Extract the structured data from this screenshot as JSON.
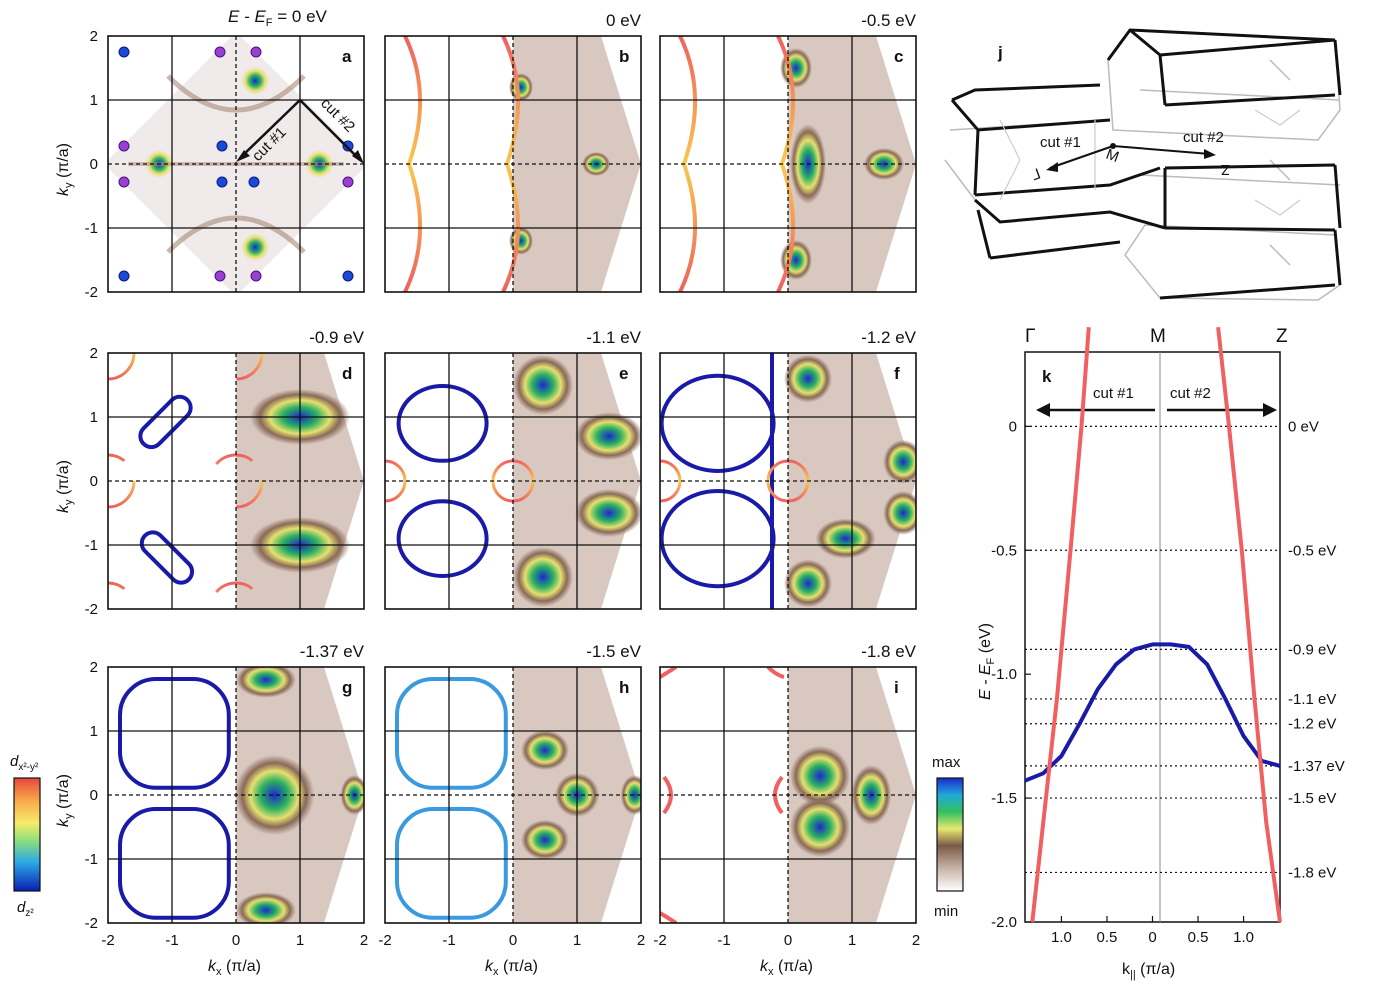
{
  "figure": {
    "energy_header": "E - E",
    "energy_header_sub": "F",
    "energy_header_value": " = 0 eV",
    "ky_label": "k",
    "ky_sub": "y",
    "ky_unit": " (π/a)",
    "kx_label": "k",
    "kx_sub": "x",
    "kx_unit": " (π/a)",
    "axis_ticks": [
      "-2",
      "-1",
      "0",
      "1",
      "2"
    ]
  },
  "panels": [
    {
      "label": "a",
      "energy": ""
    },
    {
      "label": "b",
      "energy": "0 eV"
    },
    {
      "label": "c",
      "energy": "-0.5 eV"
    },
    {
      "label": "d",
      "energy": "-0.9 eV"
    },
    {
      "label": "e",
      "energy": "-1.1 eV"
    },
    {
      "label": "f",
      "energy": "-1.2 eV"
    },
    {
      "label": "g",
      "energy": "-1.37 eV"
    },
    {
      "label": "h",
      "energy": "-1.5 eV"
    },
    {
      "label": "i",
      "energy": "-1.8 eV"
    }
  ],
  "panel_a_annotations": {
    "cut1": "cut #1",
    "cut2": "cut #2"
  },
  "panel_j": {
    "label": "j",
    "cut1": "cut #1",
    "cut2": "cut #2",
    "gamma": "Γ",
    "m": "M",
    "z": "Z"
  },
  "panel_k": {
    "label": "k",
    "top_labels": [
      "Γ",
      "M",
      "Z"
    ],
    "cut1": "cut #1",
    "cut2": "cut #2",
    "ylabel": "E - E",
    "ylabel_sub": "F",
    "ylabel_unit": " (eV)",
    "xlabel": "k",
    "xlabel_sub": "||",
    "xlabel_unit": " (π/a)",
    "y_ticks": [
      "0",
      "-0.5",
      "-1.0",
      "-1.5",
      "-2.0"
    ],
    "x_ticks": [
      "1.0",
      "0.5",
      "0",
      "0.5",
      "1.0"
    ],
    "energy_marks": [
      "0 eV",
      "-0.5 eV",
      "-0.9 eV",
      "-1.1 eV",
      "-1.2 eV",
      "-1.37 eV",
      "-1.5 eV",
      "-1.8 eV"
    ]
  },
  "orbital_colorbar": {
    "top": "d",
    "top_sub": "x²-y²",
    "bottom": "d",
    "bottom_sub": "z²"
  },
  "intensity_colorbar": {
    "top": "max",
    "bottom": "min"
  },
  "colors": {
    "red_band": "#f06060",
    "blue_band": "#1a1aa8",
    "intensity_low": "#f4ecec",
    "intensity_mid": "#8a6a58",
    "intensity_high": "#2ab04a",
    "intensity_peak": "#1a3ad0"
  },
  "chart_data": {
    "type": "line",
    "title": "",
    "xlabel": "k|| (π/a)",
    "ylabel": "E - EF (eV)",
    "ylim": [
      -2.0,
      0.3
    ],
    "xlim": [
      -1.4,
      1.4
    ],
    "series": [
      {
        "x": [
          -1.4,
          -1.2,
          -1.0,
          -0.8,
          -0.6,
          -0.4,
          -0.2,
          0.0,
          0.2,
          0.4,
          0.6,
          0.8,
          1.0,
          1.2,
          1.4
        ],
        "y": [
          -1.43,
          -1.4,
          -1.33,
          -1.2,
          -1.06,
          -0.96,
          -0.9,
          -0.88,
          -0.88,
          -0.89,
          -0.96,
          -1.1,
          -1.25,
          -1.35,
          -1.37
        ]
      },
      {
        "x": [
          -1.32,
          -1.2,
          -1.05,
          -0.9,
          -0.78,
          -0.7
        ],
        "y": [
          -2.0,
          -1.6,
          -1.1,
          -0.5,
          0.0,
          0.4
        ]
      },
      {
        "x": [
          0.72,
          0.84,
          0.98,
          1.12,
          1.25,
          1.4
        ],
        "y": [
          0.4,
          0.0,
          -0.5,
          -1.1,
          -1.6,
          -2.0
        ]
      }
    ]
  }
}
